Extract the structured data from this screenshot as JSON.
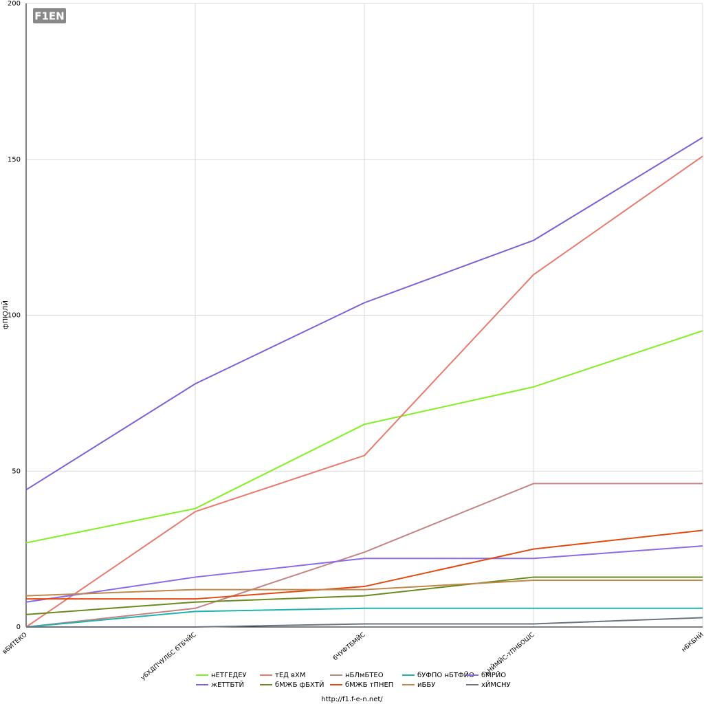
{
  "chart_data": {
    "type": "line",
    "logo": "F1EN",
    "ylabel": "фПЮЛЙ",
    "footer": "http://f1.f-e-n.net/",
    "categories": [
      "вБИТЕКО",
      "уБХДПЧУЛБС бТБЧЙС",
      "бЧУФТБМЙС",
      "ьНЙМЙС-тПНБОШС",
      "нБКБНЙ"
    ],
    "ylim": [
      0,
      200
    ],
    "yticks": [
      0,
      50,
      100,
      150,
      200
    ],
    "grid": true,
    "series": [
      {
        "name": "нЕТГЕДЕУ",
        "color": "#80f020",
        "values": [
          27,
          38,
          65,
          77,
          95
        ]
      },
      {
        "name": "тЕД вХМ",
        "color": "#e87a6e",
        "values": [
          0,
          37,
          55,
          113,
          151
        ]
      },
      {
        "name": "нБЛмБТЕО",
        "color": "#c48383",
        "values": [
          0,
          6,
          24,
          46,
          46
        ]
      },
      {
        "name": "бУФПО нБТФЙО",
        "color": "#20b0b0",
        "values": [
          0,
          5,
          6,
          6,
          6
        ]
      },
      {
        "name": "бМРЙО",
        "color": "#8a6ae8",
        "values": [
          8,
          16,
          22,
          22,
          26
        ]
      },
      {
        "name": "жЕТТБТЙ",
        "color": "#7d5fd6",
        "values": [
          44,
          78,
          104,
          124,
          157
        ]
      },
      {
        "name": "бМЖБ фБХТЙ",
        "color": "#6b8a1e",
        "values": [
          4,
          8,
          10,
          16,
          16
        ]
      },
      {
        "name": "бМЖБ тПНЕП",
        "color": "#e04a10",
        "values": [
          9,
          9,
          13,
          25,
          31
        ]
      },
      {
        "name": "иББУ",
        "color": "#c0864a",
        "values": [
          10,
          12,
          12,
          15,
          15
        ]
      },
      {
        "name": "хЙМСНУ",
        "color": "#6a7480",
        "values": [
          0,
          0,
          1,
          1,
          3
        ]
      }
    ]
  }
}
